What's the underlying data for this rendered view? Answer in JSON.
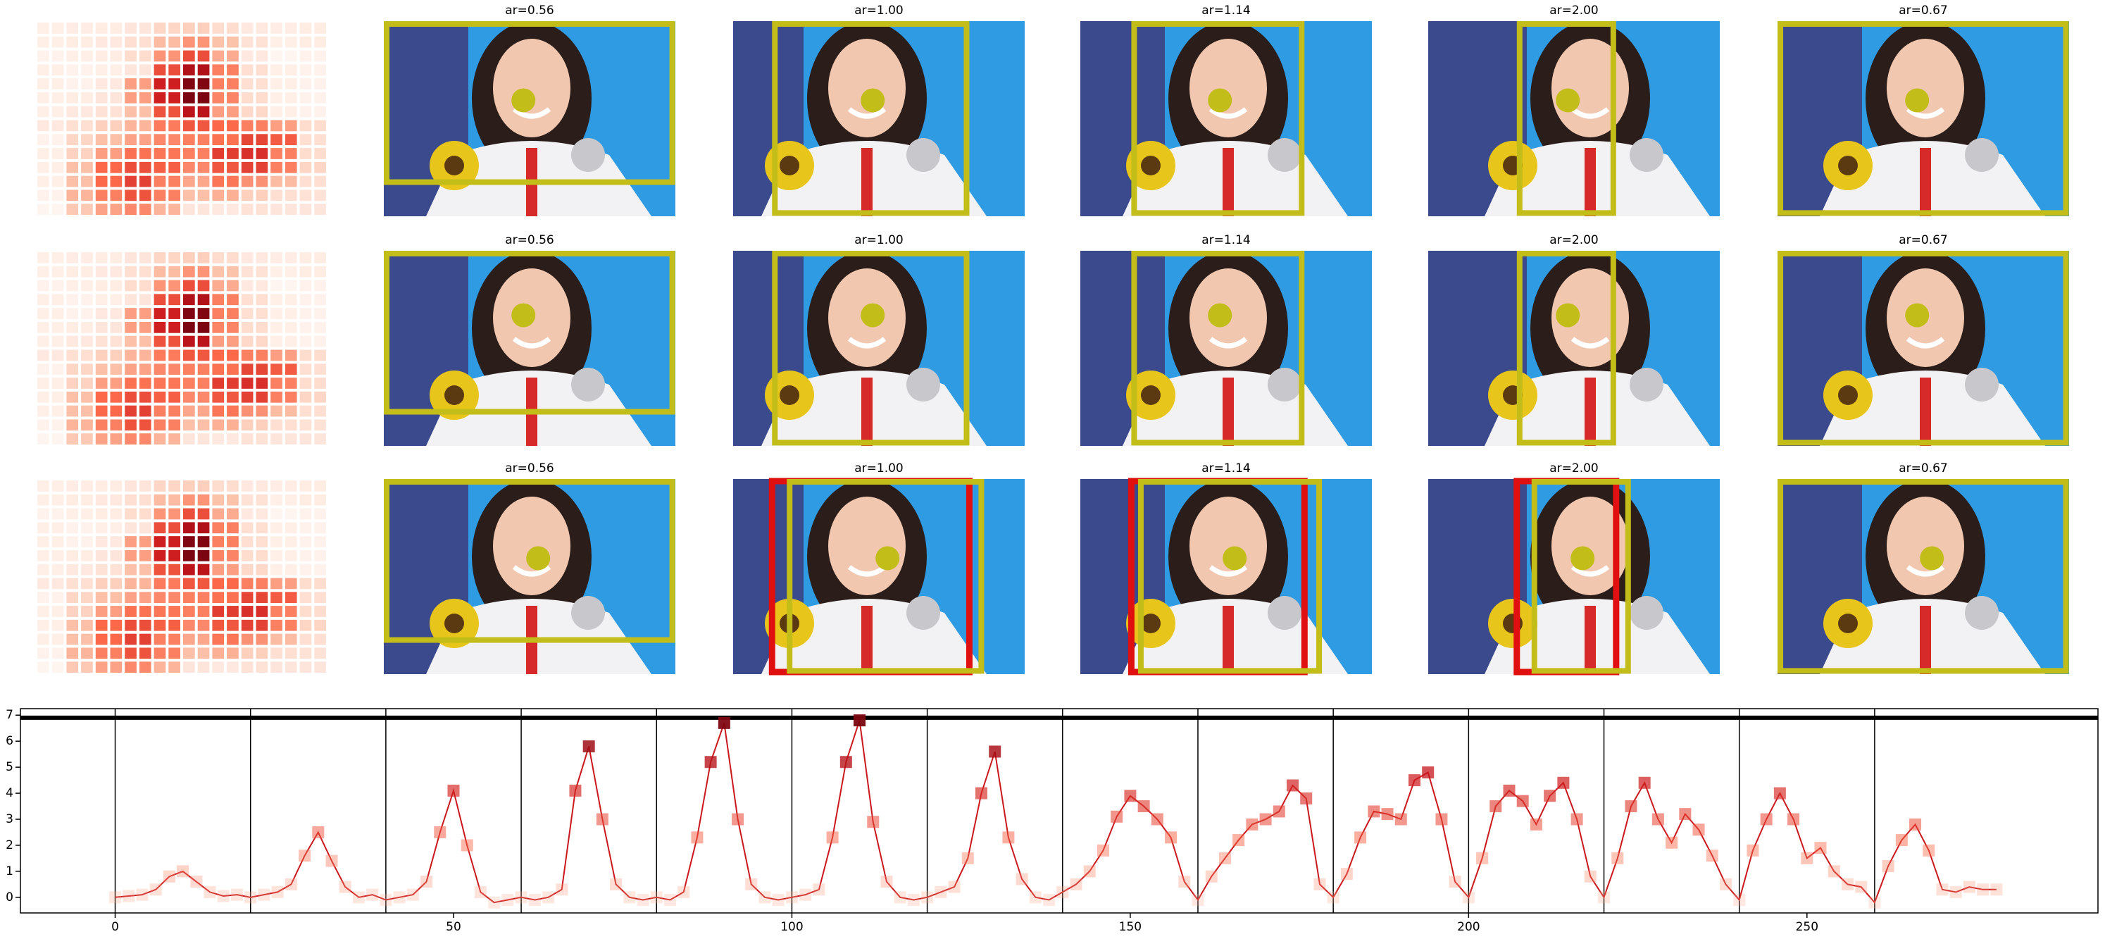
{
  "panel_titles": [
    "ar=0.56",
    "ar=1.00",
    "ar=1.14",
    "ar=2.00",
    "ar=0.67"
  ],
  "chart_data": {
    "type": "line",
    "color": "#cb181d",
    "x": [
      0,
      2,
      4,
      6,
      8,
      10,
      12,
      14,
      16,
      18,
      20,
      22,
      24,
      26,
      28,
      30,
      32,
      34,
      36,
      38,
      40,
      42,
      44,
      46,
      48,
      50,
      52,
      54,
      56,
      58,
      60,
      62,
      64,
      66,
      68,
      70,
      72,
      74,
      76,
      78,
      80,
      82,
      84,
      86,
      88,
      90,
      92,
      94,
      96,
      98,
      100,
      102,
      104,
      106,
      108,
      110,
      112,
      114,
      116,
      118,
      120,
      122,
      124,
      126,
      128,
      130,
      132,
      134,
      136,
      138,
      140,
      142,
      144,
      146,
      148,
      150,
      152,
      154,
      156,
      158,
      160,
      162,
      164,
      166,
      168,
      170,
      172,
      174,
      176,
      178,
      180,
      182,
      184,
      186,
      188,
      190,
      192,
      194,
      196,
      198,
      200,
      202,
      204,
      206,
      208,
      210,
      212,
      214,
      216,
      218,
      220,
      222,
      224,
      226,
      228,
      230,
      232,
      234,
      236,
      238,
      240,
      242,
      244,
      246,
      248,
      250,
      252,
      254,
      256,
      258,
      260,
      262,
      264,
      266,
      268,
      270,
      272,
      274,
      276,
      278
    ],
    "values": [
      0.0,
      0.05,
      0.1,
      0.3,
      0.8,
      1.0,
      0.6,
      0.2,
      0.05,
      0.1,
      0.0,
      0.1,
      0.2,
      0.5,
      1.6,
      2.5,
      1.4,
      0.4,
      0.0,
      0.1,
      -0.1,
      0.0,
      0.1,
      0.6,
      2.5,
      4.1,
      2.0,
      0.2,
      -0.2,
      -0.1,
      0.0,
      -0.1,
      0.0,
      0.3,
      4.1,
      5.8,
      3.0,
      0.5,
      0.0,
      -0.1,
      0.0,
      -0.1,
      0.2,
      2.3,
      5.2,
      6.7,
      3.0,
      0.5,
      0.0,
      -0.1,
      0.0,
      0.1,
      0.3,
      2.3,
      5.2,
      6.8,
      2.9,
      0.6,
      0.0,
      -0.1,
      0.0,
      0.2,
      0.4,
      1.5,
      4.0,
      5.6,
      2.3,
      0.7,
      0.0,
      -0.1,
      0.2,
      0.5,
      1.0,
      1.8,
      3.1,
      3.9,
      3.5,
      3.0,
      2.3,
      0.6,
      -0.1,
      0.8,
      1.5,
      2.2,
      2.8,
      3.0,
      3.3,
      4.3,
      3.8,
      0.5,
      0.0,
      0.9,
      2.3,
      3.3,
      3.2,
      3.0,
      4.5,
      4.8,
      3.0,
      0.6,
      0.0,
      1.5,
      3.5,
      4.1,
      3.7,
      2.8,
      3.9,
      4.4,
      3.0,
      0.8,
      0.0,
      1.5,
      3.5,
      4.4,
      3.0,
      2.1,
      3.2,
      2.6,
      1.6,
      0.5,
      -0.1,
      1.8,
      3.0,
      4.0,
      3.0,
      1.5,
      1.9,
      1.0,
      0.5,
      0.4,
      -0.2,
      1.2,
      2.2,
      2.8,
      1.8,
      0.3,
      0.2,
      0.4,
      0.3,
      0.3
    ],
    "xlim": [
      -14,
      293
    ],
    "ylim": [
      -0.6,
      7.25
    ],
    "xticks": [
      0,
      50,
      100,
      150,
      200,
      250
    ],
    "yticks": [
      0,
      1,
      2,
      3,
      4,
      5,
      6,
      7
    ],
    "vlines": [
      0,
      20,
      40,
      60,
      80,
      100,
      120,
      140,
      160,
      180,
      200,
      220,
      240,
      260
    ],
    "hline": 6.9
  }
}
